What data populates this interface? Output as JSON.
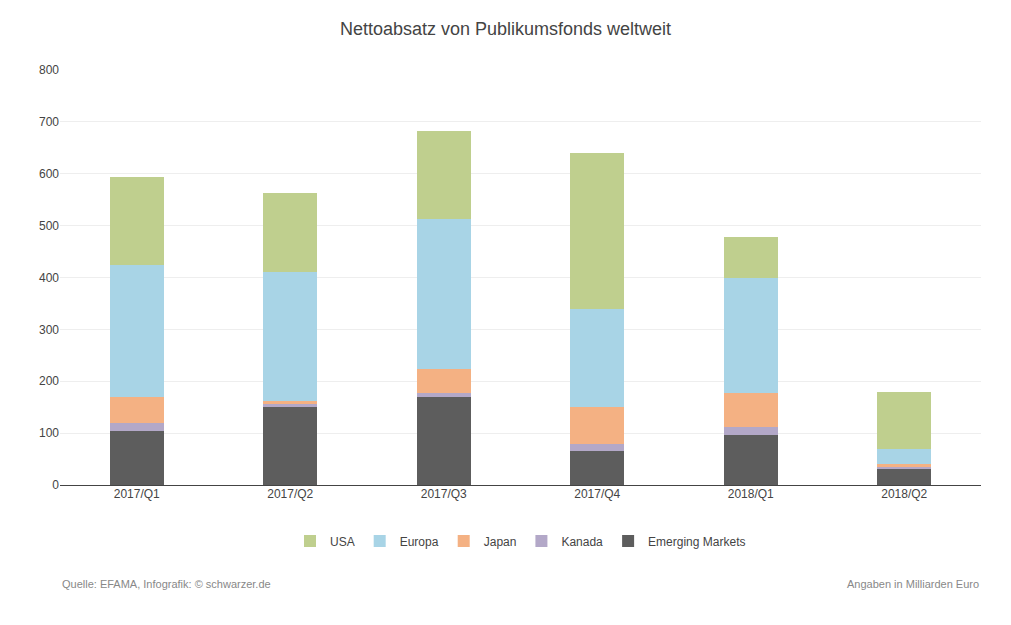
{
  "chart_data": {
    "type": "bar",
    "title": "Nettoabsatz von Publikumsfonds weltweit",
    "categories": [
      "2017/Q1",
      "2017/Q2",
      "2017/Q3",
      "2017/Q4",
      "2018/Q1",
      "2018/Q2"
    ],
    "series": [
      {
        "name": "Emerging Markets",
        "color": "#5d5d5d",
        "values": [
          105,
          150,
          170,
          65,
          97,
          30
        ]
      },
      {
        "name": "Kanada",
        "color": "#b3a8c8",
        "values": [
          15,
          8,
          8,
          15,
          15,
          5
        ]
      },
      {
        "name": "Japan",
        "color": "#f4b183",
        "values": [
          50,
          3,
          45,
          70,
          65,
          5
        ]
      },
      {
        "name": "Europa",
        "color": "#a8d4e6",
        "values": [
          255,
          250,
          290,
          190,
          223,
          30
        ]
      },
      {
        "name": "USA",
        "color": "#bfcf8e",
        "values": [
          168,
          152,
          170,
          300,
          78,
          110
        ]
      }
    ],
    "stacked": true,
    "ylim": [
      0,
      800
    ],
    "yticks": [
      0,
      100,
      200,
      300,
      400,
      500,
      600,
      700,
      800
    ],
    "grid": true,
    "legend": "bottom",
    "annotations": [
      "Quelle: EFAMA, Infografik: © schwarzer.de",
      "Angaben in Milliarden Euro"
    ]
  }
}
